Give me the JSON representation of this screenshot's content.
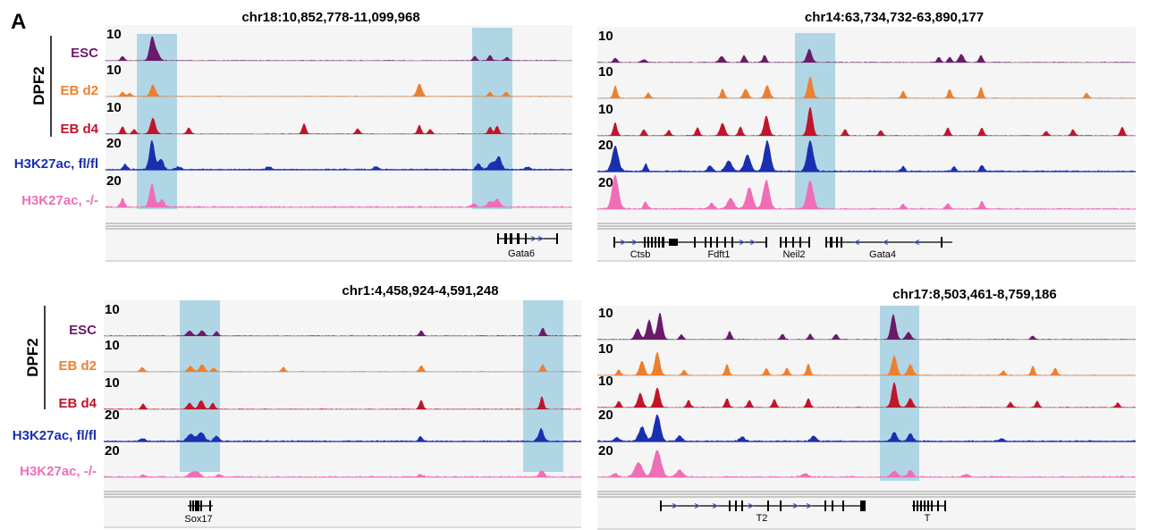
{
  "figure": {
    "panel_letter": "A",
    "group_label": "DPF2",
    "tracks": [
      {
        "label": "ESC",
        "color": "#6b1a6b",
        "scale": "10"
      },
      {
        "label": "EB d2",
        "color": "#ee7f2e",
        "scale": "10"
      },
      {
        "label": "EB d4",
        "color": "#c0152a",
        "scale": "10"
      },
      {
        "label": "H3K27ac, fl/fl",
        "color": "#1a2fb0",
        "scale": "20"
      },
      {
        "label": "H3K27ac, -/-",
        "color": "#ee6eb8",
        "scale": "20"
      }
    ]
  },
  "panels": [
    {
      "id": "p1",
      "region": "chr18:10,852,778-11,099,968",
      "genes": [
        "Gata6"
      ]
    },
    {
      "id": "p2",
      "region": "chr14:63,734,732-63,890,177",
      "genes": [
        "Ctsb",
        "Fdft1",
        "Neil2",
        "Gata4"
      ]
    },
    {
      "id": "p3",
      "region": "chr1:4,458,924-4,591,248",
      "genes": [
        "Sox17"
      ]
    },
    {
      "id": "p4",
      "region": "chr17:8,503,461-8,759,186",
      "genes": [
        "T2",
        "T"
      ]
    }
  ],
  "colors": {
    "highlight": "#a9d3e3",
    "panel_bg": "#f5f5f5",
    "gene": "#000000",
    "strand_arrow": "#3a55c8"
  }
}
